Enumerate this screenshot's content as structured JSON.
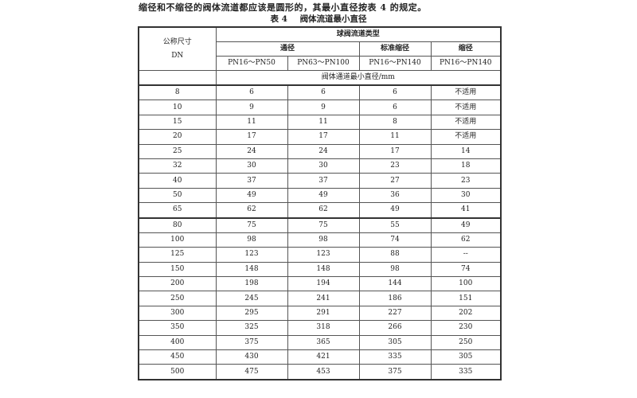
{
  "intro": "缩径和不缩径的阀体流道都应该是圆形的，其最小直径按表 4 的规定。",
  "table_title": {
    "number": "表 4",
    "text": "阀体流道最小直径"
  },
  "header": {
    "dn_label_1": "公称尺寸",
    "dn_label_2": "DN",
    "group": "球阀流道类型",
    "types": [
      "通径",
      "标准缩径",
      "缩径"
    ],
    "pressures": [
      "PN16～PN50",
      "PN63～PN100",
      "PN16～PN140",
      "PN16～PN140"
    ],
    "unit_row": "阀体通道最小直径/mm"
  },
  "rows": [
    [
      "8",
      "6",
      "6",
      "6",
      "不适用"
    ],
    [
      "10",
      "9",
      "9",
      "6",
      "不适用"
    ],
    [
      "15",
      "11",
      "11",
      "8",
      "不适用"
    ],
    [
      "20",
      "17",
      "17",
      "11",
      "不适用"
    ],
    [
      "25",
      "24",
      "24",
      "17",
      "14"
    ],
    [
      "32",
      "30",
      "30",
      "23",
      "18"
    ],
    [
      "40",
      "37",
      "37",
      "27",
      "23"
    ],
    [
      "50",
      "49",
      "49",
      "36",
      "30"
    ],
    [
      "65",
      "62",
      "62",
      "49",
      "41"
    ],
    [
      "80",
      "75",
      "75",
      "55",
      "49"
    ],
    [
      "100",
      "98",
      "98",
      "74",
      "62"
    ],
    [
      "125",
      "123",
      "123",
      "88",
      "--"
    ],
    [
      "150",
      "148",
      "148",
      "98",
      "74"
    ],
    [
      "200",
      "198",
      "194",
      "144",
      "100"
    ],
    [
      "250",
      "245",
      "241",
      "186",
      "151"
    ],
    [
      "300",
      "295",
      "291",
      "227",
      "202"
    ],
    [
      "350",
      "325",
      "318",
      "266",
      "230"
    ],
    [
      "400",
      "375",
      "365",
      "305",
      "250"
    ],
    [
      "450",
      "430",
      "421",
      "335",
      "305"
    ],
    [
      "500",
      "475",
      "453",
      "375",
      "335"
    ]
  ]
}
